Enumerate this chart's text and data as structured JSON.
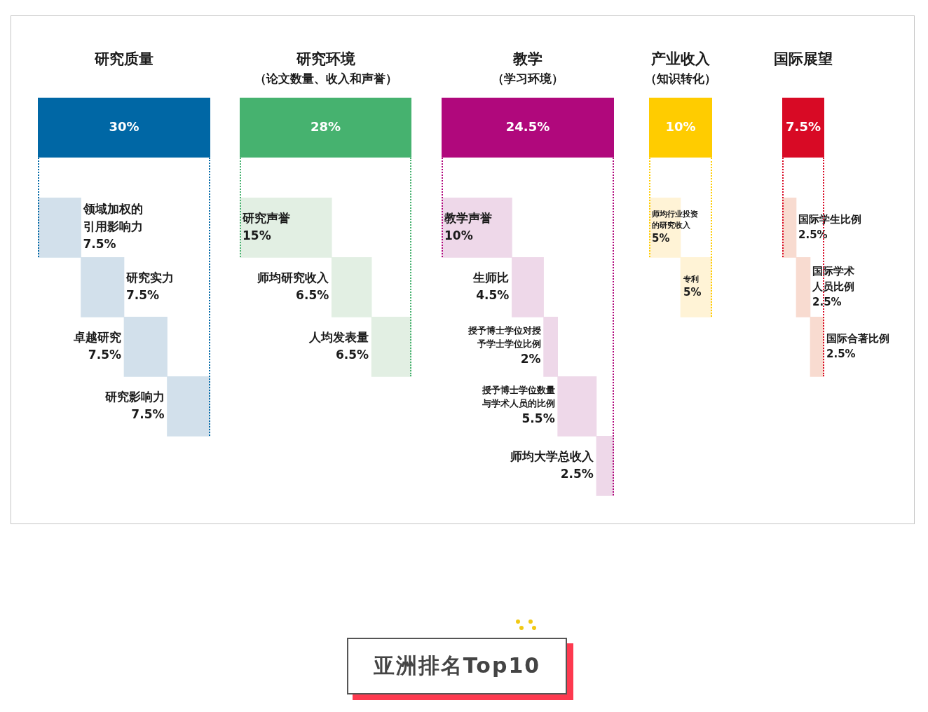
{
  "chart_data": [
    {
      "type": "other",
      "title": "研究质量",
      "categories": [
        null,
        "领域加权的引用影响力",
        "研究实力",
        "卓越研究",
        "研究影响力"
      ],
      "values": [
        30,
        7.5,
        7.5,
        7.5,
        7.5
      ],
      "colors": [
        "#0067a5",
        "#d2e0eb",
        "#d2e0eb",
        "#d2e0eb",
        "#d2e0eb"
      ],
      "value_labels": [
        "30%",
        "7.5%",
        "7.5%",
        "7.5%",
        "7.5%"
      ]
    },
    {
      "type": "other",
      "title": "研究环境",
      "subtitle": "（论文数量、收入和声誉）",
      "categories": [
        null,
        "研究声誉",
        "师均研究收入",
        "人均发表量"
      ],
      "values": [
        28,
        15,
        6.5,
        6.5
      ],
      "colors": [
        "#46b26f",
        "#e2efe3",
        "#e2efe3",
        "#e2efe3"
      ],
      "value_labels": [
        "28%",
        "15%",
        "6.5%",
        "6.5%"
      ]
    },
    {
      "type": "other",
      "title": "教学",
      "subtitle": "（学习环境）",
      "categories": [
        null,
        "教学声誉",
        "生师比",
        "授予博士学位对授予学士学位比例",
        "授予博士学位数量与学术人员的比例",
        "师均大学总收入"
      ],
      "values": [
        24.5,
        10,
        4.5,
        2,
        5.5,
        2.5
      ],
      "colors": [
        "#b0087c",
        "#eed8e9",
        "#eed8e9",
        "#eed8e9",
        "#eed8e9",
        "#eed8e9"
      ],
      "value_labels": [
        "24.5%",
        "10%",
        "4.5%",
        "2%",
        "5.5%",
        "2.5%"
      ]
    },
    {
      "type": "other",
      "title": "产业收入",
      "subtitle": "（知识转化）",
      "categories": [
        null,
        "师均行业投资的研究收入",
        "专利"
      ],
      "values": [
        10,
        5,
        5
      ],
      "colors": [
        "#ffcc00",
        "#fff3d6",
        "#fff3d6"
      ],
      "value_labels": [
        "10%",
        "5%",
        "5%"
      ]
    },
    {
      "type": "other",
      "title": "国际展望",
      "categories": [
        null,
        "国际学生比例",
        "国际学术人员比例",
        "国际合著比例"
      ],
      "values": [
        7.5,
        2.5,
        2.5,
        2.5
      ],
      "colors": [
        "#d80a25",
        "#f8dbd0",
        "#f8dbd0",
        "#f8dbd0"
      ],
      "value_labels": [
        "7.5%",
        "2.5%",
        "2.5%",
        "2.5%"
      ]
    },
    {
      "type": "other",
      "title": "亚洲排名Top10"
    }
  ]
}
